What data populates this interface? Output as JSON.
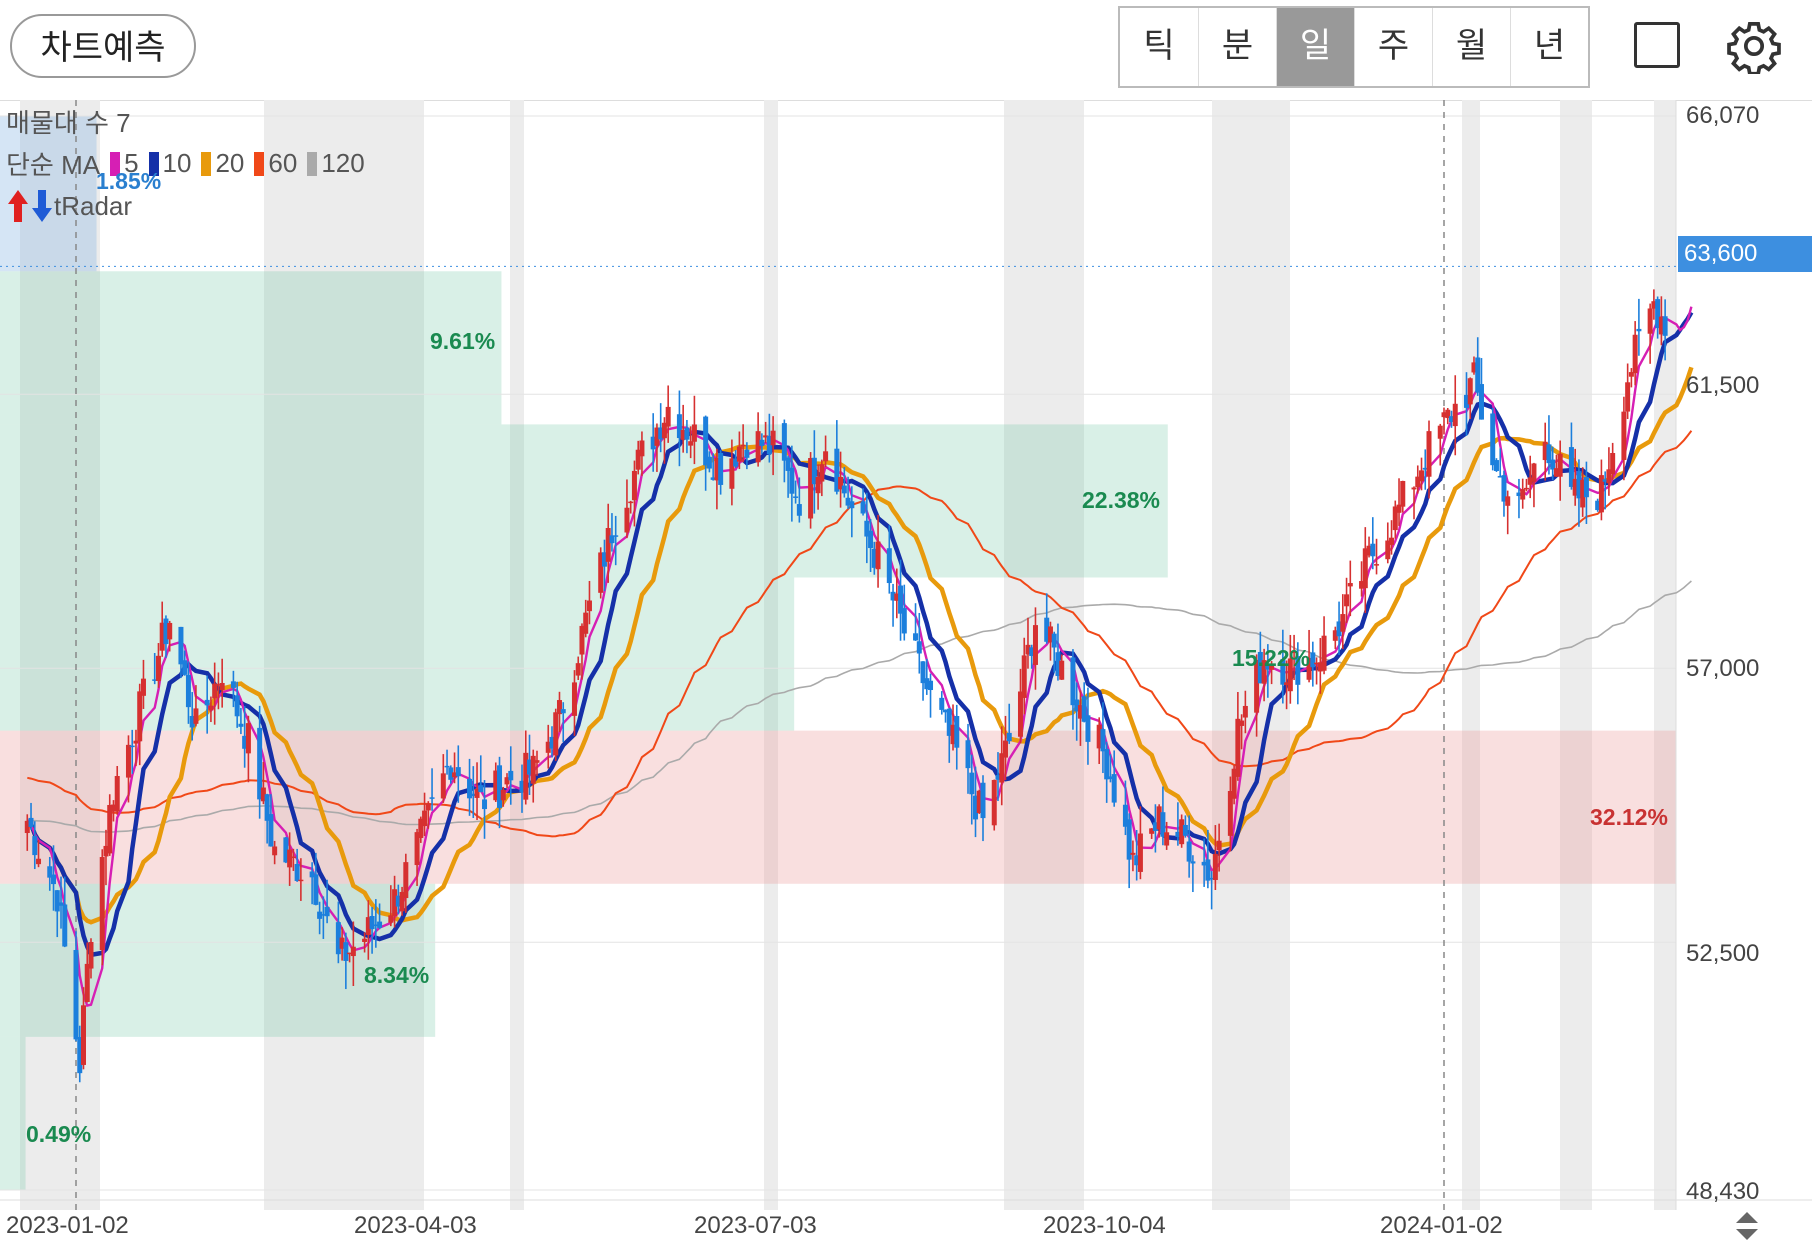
{
  "toolbar": {
    "predict_label": "차트예측",
    "periods": [
      "틱",
      "분",
      "일",
      "주",
      "월",
      "년"
    ],
    "active_period": "일"
  },
  "legend": {
    "volume_profile": "매물대 수 7",
    "ma_label": "단순 MA",
    "ma": [
      {
        "period": "5",
        "color": "#d61fb4"
      },
      {
        "period": "10",
        "color": "#1530a8"
      },
      {
        "period": "20",
        "color": "#e89a0c"
      },
      {
        "period": "60",
        "color": "#f04818"
      },
      {
        "period": "120",
        "color": "#aaaaaa"
      }
    ],
    "radar_label": "tRadar"
  },
  "price_tag": "63,600",
  "y_axis": [
    "66,070",
    "61,500",
    "57,000",
    "52,500",
    "48,430"
  ],
  "x_axis": [
    "2023-01-02",
    "2023-04-03",
    "2023-07-03",
    "2023-10-04",
    "2024-01-02"
  ],
  "volume_profile_pcts": [
    "1.85%",
    "9.61%",
    "22.38%",
    "15.22%",
    "32.12%",
    "8.34%",
    "0.49%"
  ],
  "chart_data": {
    "type": "candlestick",
    "yrange": [
      48430,
      66070
    ],
    "current_price": 63600,
    "x_labels": [
      "2023-01-02",
      "2023-04-03",
      "2023-07-03",
      "2023-10-04",
      "2024-01-02"
    ],
    "close_path": [
      [
        "2022-12-20",
        54500
      ],
      [
        "2022-12-28",
        53300
      ],
      [
        "2023-01-03",
        50500
      ],
      [
        "2023-01-06",
        52800
      ],
      [
        "2023-01-12",
        55000
      ],
      [
        "2023-01-20",
        56500
      ],
      [
        "2023-01-27",
        57800
      ],
      [
        "2023-02-03",
        56000
      ],
      [
        "2023-02-10",
        57000
      ],
      [
        "2023-02-17",
        55800
      ],
      [
        "2023-02-24",
        54000
      ],
      [
        "2023-03-06",
        53600
      ],
      [
        "2023-03-13",
        52200
      ],
      [
        "2023-03-20",
        52600
      ],
      [
        "2023-03-28",
        53200
      ],
      [
        "2023-04-04",
        54200
      ],
      [
        "2023-04-12",
        55500
      ],
      [
        "2023-04-20",
        54800
      ],
      [
        "2023-04-28",
        55200
      ],
      [
        "2023-05-04",
        55300
      ],
      [
        "2023-05-11",
        56200
      ],
      [
        "2023-05-19",
        58000
      ],
      [
        "2023-05-26",
        59500
      ],
      [
        "2023-06-02",
        60500
      ],
      [
        "2023-06-09",
        61300
      ],
      [
        "2023-06-16",
        60800
      ],
      [
        "2023-06-23",
        60300
      ],
      [
        "2023-06-30",
        60800
      ],
      [
        "2023-07-07",
        60600
      ],
      [
        "2023-07-14",
        59800
      ],
      [
        "2023-07-21",
        60700
      ],
      [
        "2023-07-28",
        59600
      ],
      [
        "2023-08-04",
        58800
      ],
      [
        "2023-08-11",
        57600
      ],
      [
        "2023-08-18",
        56500
      ],
      [
        "2023-08-25",
        55600
      ],
      [
        "2023-09-01",
        54500
      ],
      [
        "2023-09-08",
        55800
      ],
      [
        "2023-09-15",
        57800
      ],
      [
        "2023-09-22",
        57000
      ],
      [
        "2023-10-04",
        55500
      ],
      [
        "2023-10-11",
        53800
      ],
      [
        "2023-10-18",
        54500
      ],
      [
        "2023-10-25",
        54200
      ],
      [
        "2023-11-01",
        53600
      ],
      [
        "2023-11-08",
        56000
      ],
      [
        "2023-11-15",
        57200
      ],
      [
        "2023-11-22",
        57000
      ],
      [
        "2023-11-29",
        57200
      ],
      [
        "2023-12-06",
        57800
      ],
      [
        "2023-12-13",
        58800
      ],
      [
        "2023-12-20",
        59500
      ],
      [
        "2023-12-28",
        60500
      ],
      [
        "2024-01-04",
        61200
      ],
      [
        "2024-01-10",
        61700
      ],
      [
        "2024-01-16",
        60200
      ],
      [
        "2024-01-22",
        59600
      ],
      [
        "2024-01-29",
        60800
      ],
      [
        "2024-02-05",
        59800
      ],
      [
        "2024-02-13",
        59900
      ],
      [
        "2024-02-20",
        61800
      ],
      [
        "2024-02-27",
        63000
      ],
      [
        "2024-03-04",
        62400
      ],
      [
        "2024-03-08",
        63600
      ]
    ],
    "moving_averages": [
      {
        "period": 5,
        "color": "#d61fb4"
      },
      {
        "period": 10,
        "color": "#1530a8"
      },
      {
        "period": 20,
        "color": "#e89a0c"
      },
      {
        "period": 60,
        "color": "#f04818"
      },
      {
        "period": 120,
        "color": "#aaaaaa"
      }
    ],
    "volume_profile": [
      {
        "from": 48430,
        "to": 50945,
        "pct": 0.49
      },
      {
        "from": 50945,
        "to": 53460,
        "pct": 8.34
      },
      {
        "from": 53460,
        "to": 55975,
        "pct": 32.12
      },
      {
        "from": 55975,
        "to": 58490,
        "pct": 15.22
      },
      {
        "from": 58490,
        "to": 61005,
        "pct": 22.38
      },
      {
        "from": 61005,
        "to": 63520,
        "pct": 9.61
      },
      {
        "from": 63520,
        "to": 66070,
        "pct": 1.85
      }
    ]
  }
}
